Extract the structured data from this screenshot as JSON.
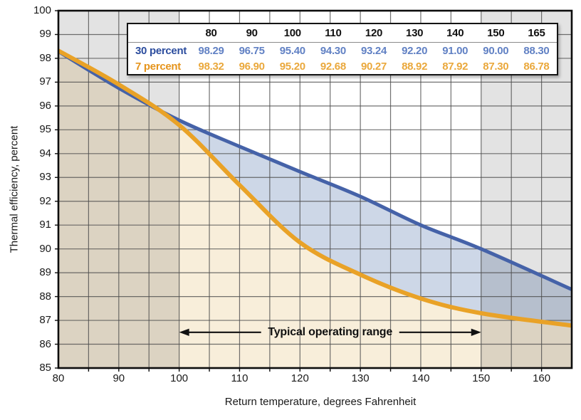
{
  "page": {
    "background": "#ffffff"
  },
  "chart_data": {
    "type": "line",
    "title": "",
    "xlabel": "Return temperature, degrees Fahrenheit",
    "ylabel": "Thermal efficiency, percent",
    "x": [
      80,
      90,
      100,
      110,
      120,
      130,
      140,
      150,
      165
    ],
    "series": [
      {
        "name": "30 percent",
        "values": [
          98.29,
          96.75,
          95.4,
          94.3,
          93.24,
          92.2,
          91.0,
          90.0,
          88.3
        ],
        "color": "#4562a8"
      },
      {
        "name": "7 percent",
        "values": [
          98.32,
          96.9,
          95.2,
          92.68,
          90.27,
          88.92,
          87.92,
          87.3,
          86.78
        ],
        "color": "#e9a227"
      }
    ],
    "xlim": [
      80,
      165
    ],
    "ylim": [
      85,
      100
    ],
    "x_tick_labels": [
      80,
      90,
      100,
      110,
      120,
      130,
      140,
      150,
      160
    ],
    "y_tick_labels": [
      100,
      99,
      98,
      97,
      96,
      95,
      94,
      93,
      92,
      91,
      90,
      89,
      88,
      87,
      86,
      85
    ],
    "x_grid_step": 5,
    "y_grid_step": 1,
    "grid": true,
    "legend_position": "table-top",
    "annotation": {
      "label": "Typical operating range",
      "x_start": 100,
      "x_end": 150,
      "y": 86.5
    },
    "shaded_bands_x": [
      [
        80,
        100
      ],
      [
        150,
        165
      ]
    ],
    "colors": {
      "plot_background": "#ffffff",
      "fill_under_7pct": "#f8eeda",
      "fill_between_series": "#cdd7e7",
      "band_overlay": "#000000",
      "band_overlay_opacity": 0.11,
      "gridline": "#4d4d4d",
      "axis_border": "#0d0d0d",
      "arrow": "#111111"
    }
  },
  "table": {
    "corner_label": "",
    "columns": [
      "80",
      "90",
      "100",
      "110",
      "120",
      "130",
      "140",
      "150",
      "165"
    ],
    "rows": [
      {
        "label": "30 percent",
        "label_color": "#2c4d9e",
        "value_color": "#6181c4",
        "values": [
          "98.29",
          "96.75",
          "95.40",
          "94.30",
          "93.24",
          "92.20",
          "91.00",
          "90.00",
          "88.30"
        ]
      },
      {
        "label": "7 percent",
        "label_color": "#e5941c",
        "value_color": "#eaa83c",
        "values": [
          "98.32",
          "96.90",
          "95.20",
          "92.68",
          "90.27",
          "88.92",
          "87.92",
          "87.30",
          "86.78"
        ]
      }
    ]
  }
}
